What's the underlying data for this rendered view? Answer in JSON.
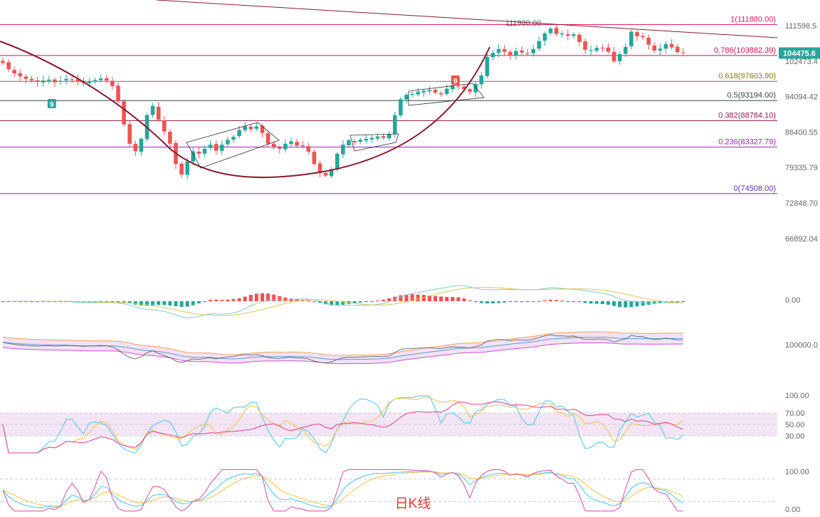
{
  "chart_data": {
    "type": "candlestick",
    "caption": "日K线",
    "colors": {
      "up": "#26a69a",
      "down": "#ef5350",
      "fib_0": "#5e35b1",
      "fib_0236": "#9c27b0",
      "fib_0382": "#8e244d",
      "fib_05": "#37474f",
      "fib_0618": "#827717",
      "fib_0786": "#c2185b",
      "fib_1": "#e91e63",
      "arc": "#8b1a2e",
      "caption": "#e53935",
      "rsi_band": "#f3e5f5",
      "cloud": "#e1bee7"
    },
    "price_axis": {
      "ticks": [
        "111598.5",
        "102473.4",
        "94094.42",
        "86400.55",
        "79335.79",
        "72848.70",
        "66892.04"
      ],
      "tick_values": [
        111598.5,
        102473.4,
        94094.42,
        86400.55,
        79335.79,
        72848.7,
        66892.04
      ]
    },
    "current_price": {
      "label": "104475.6",
      "value": 104475.6
    },
    "peak_label": {
      "text": "111980.00",
      "value": 111980.0
    },
    "fib_levels": [
      {
        "key": "fib_1",
        "label": "1(111880.00)",
        "value": 111880.0
      },
      {
        "key": "fib_0786",
        "label": "0.786(103882.39)",
        "value": 103882.39
      },
      {
        "key": "fib_0618",
        "label": "0.618(97603.90)",
        "value": 97603.9
      },
      {
        "key": "fib_05",
        "label": "0.5(93194.00)",
        "value": 93194.0
      },
      {
        "key": "fib_0382",
        "label": "0.382(88784.10)",
        "value": 88784.1
      },
      {
        "key": "fib_0236",
        "label": "0.236(83327.79)",
        "value": 83327.79
      },
      {
        "key": "fib_0",
        "label": "0(74508.00)",
        "value": 74508.0
      }
    ],
    "markers": [
      {
        "text": "9",
        "index": 8,
        "color": "#26a69a"
      },
      {
        "text": "9",
        "index": 78,
        "color": "#ef5350"
      }
    ],
    "closes": [
      102000,
      100500,
      99500,
      98800,
      98200,
      97800,
      97500,
      97800,
      98000,
      97400,
      97700,
      98200,
      97900,
      97600,
      97200,
      97500,
      97900,
      98300,
      97800,
      96500,
      93000,
      88000,
      84000,
      82500,
      85000,
      90000,
      92000,
      89000,
      86500,
      84000,
      80000,
      78000,
      80500,
      82500,
      82000,
      83000,
      83800,
      82600,
      83800,
      84800,
      85400,
      86800,
      87600,
      87000,
      87600,
      86200,
      84000,
      83400,
      83000,
      84000,
      84500,
      83600,
      83500,
      82400,
      80000,
      78300,
      77800,
      79000,
      82000,
      83800,
      84700,
      84300,
      84800,
      85000,
      85200,
      85500,
      85200,
      86000,
      90000,
      93500,
      94500,
      94700,
      95200,
      95400,
      95600,
      95000,
      94600,
      95900,
      96600,
      96300,
      95800,
      95200,
      97000,
      99000,
      103500,
      104500,
      105500,
      104800,
      103800,
      105000,
      104600,
      104400,
      105500,
      107500,
      109500,
      110800,
      109400,
      109500,
      108900,
      109300,
      107300,
      105300,
      105200,
      105800,
      105700,
      104800,
      102400,
      104200,
      106000,
      110000,
      108800,
      108600,
      106600,
      105100,
      105600,
      106800,
      105900,
      104700,
      104600
    ],
    "rsi_axis": {
      "ticks": [
        "100.00",
        "70.00",
        "50.00",
        "30.00"
      ],
      "tick_values": [
        100,
        70,
        50,
        30
      ]
    },
    "macd_axis": {
      "ticks": [
        "0.00"
      ],
      "tick_values": [
        0
      ]
    },
    "boll_axis": {
      "ticks": [
        "100000.0"
      ],
      "tick_values": [
        100000
      ]
    },
    "kdj_axis": {
      "ticks": [
        "100.00",
        "0.00"
      ],
      "tick_values": [
        100,
        0
      ]
    }
  }
}
